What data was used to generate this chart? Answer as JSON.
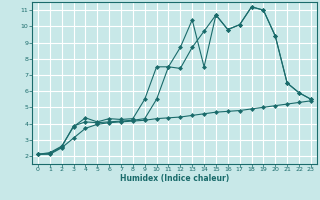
{
  "xlabel": "Humidex (Indice chaleur)",
  "xlim": [
    -0.5,
    23.5
  ],
  "ylim": [
    1.5,
    11.5
  ],
  "xticks": [
    0,
    1,
    2,
    3,
    4,
    5,
    6,
    7,
    8,
    9,
    10,
    11,
    12,
    13,
    14,
    15,
    16,
    17,
    18,
    19,
    20,
    21,
    22,
    23
  ],
  "yticks": [
    2,
    3,
    4,
    5,
    6,
    7,
    8,
    9,
    10,
    11
  ],
  "bg_color": "#c8e8e8",
  "line_color": "#1a6b6b",
  "grid_color": "#ffffff",
  "line1_x": [
    0,
    1,
    2,
    3,
    4,
    5,
    6,
    7,
    8,
    9,
    10,
    11,
    12,
    13,
    14,
    15,
    16,
    17,
    18,
    19,
    20,
    21,
    22,
    23
  ],
  "line1_y": [
    2.1,
    2.2,
    2.6,
    3.8,
    4.35,
    4.1,
    4.3,
    4.25,
    4.3,
    5.5,
    7.5,
    7.5,
    8.7,
    10.4,
    7.5,
    10.7,
    9.8,
    10.1,
    11.2,
    11.0,
    9.4,
    6.5,
    5.9,
    5.5
  ],
  "line2_x": [
    0,
    1,
    2,
    3,
    4,
    5,
    6,
    7,
    8,
    9,
    10,
    11,
    12,
    13,
    14,
    15,
    16,
    17,
    18,
    19,
    20,
    21,
    22,
    23
  ],
  "line2_y": [
    2.1,
    2.15,
    2.55,
    3.85,
    4.1,
    4.05,
    4.1,
    4.15,
    4.2,
    4.3,
    5.5,
    7.5,
    7.4,
    8.7,
    9.7,
    10.7,
    9.8,
    10.1,
    11.2,
    11.0,
    9.4,
    6.5,
    5.9,
    5.5
  ],
  "line3_x": [
    0,
    1,
    2,
    3,
    4,
    5,
    6,
    7,
    8,
    9,
    10,
    11,
    12,
    13,
    14,
    15,
    16,
    17,
    18,
    19,
    20,
    21,
    22,
    23
  ],
  "line3_y": [
    2.1,
    2.1,
    2.5,
    3.1,
    3.7,
    3.95,
    4.05,
    4.1,
    4.15,
    4.2,
    4.3,
    4.35,
    4.4,
    4.5,
    4.6,
    4.7,
    4.75,
    4.8,
    4.9,
    5.0,
    5.1,
    5.2,
    5.3,
    5.4
  ]
}
